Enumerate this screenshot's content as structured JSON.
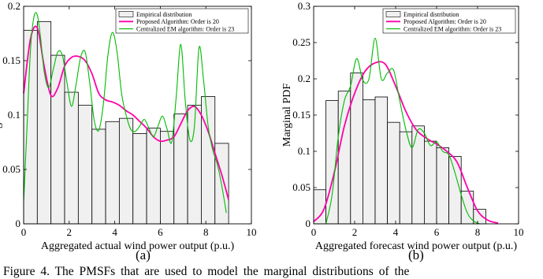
{
  "colors": {
    "empirical_fill": "#f0f0f0",
    "empirical_stroke": "#000000",
    "proposed": "#ff00aa",
    "centralized": "#00bb00"
  },
  "caption": "Figure 4. The PMSFs that are used to model the marginal distributions of the",
  "chart_data": [
    {
      "type": "bar",
      "panel_label": "(a)",
      "xlabel": "Aggregated actual wind power output (p.u.)",
      "ylabel": "Marginal PDF",
      "xlim": [
        0,
        10
      ],
      "ylim": [
        0,
        0.2
      ],
      "xticks": [
        0,
        2,
        4,
        6,
        8,
        10
      ],
      "yticks": [
        0,
        0.05,
        0.1,
        0.15,
        0.2
      ],
      "xtick_labels": [
        "0",
        "2",
        "4",
        "6",
        "8",
        "10"
      ],
      "ytick_labels": [
        "0",
        "0.05",
        "0.1",
        "0.15",
        "0.2"
      ],
      "legend_position": "top-right",
      "legend": [
        "Empirical distribution",
        "Proposed Algorithm: Order is 20",
        "Centralized EM algorithm: Order is 23"
      ],
      "bin_edges": [
        0,
        0.6,
        1.2,
        1.8,
        2.4,
        3.0,
        3.6,
        4.2,
        4.8,
        5.4,
        6.0,
        6.6,
        7.2,
        7.8,
        8.4,
        9.0
      ],
      "bar_values": [
        0.178,
        0.186,
        0.155,
        0.121,
        0.109,
        0.087,
        0.094,
        0.097,
        0.083,
        0.088,
        0.085,
        0.101,
        0.109,
        0.117,
        0.074
      ],
      "series": [
        {
          "name": "Proposed Algorithm: Order is 20",
          "x": [
            0,
            0.3,
            0.6,
            0.9,
            1.2,
            1.5,
            1.8,
            2.1,
            2.4,
            2.7,
            3.0,
            3.3,
            3.6,
            3.9,
            4.2,
            4.5,
            4.8,
            5.1,
            5.4,
            5.7,
            6.0,
            6.3,
            6.6,
            6.9,
            7.2,
            7.5,
            7.8,
            8.1,
            8.4,
            8.7,
            9.0
          ],
          "y": [
            0.12,
            0.17,
            0.18,
            0.145,
            0.118,
            0.125,
            0.145,
            0.153,
            0.154,
            0.15,
            0.138,
            0.12,
            0.114,
            0.112,
            0.109,
            0.104,
            0.1,
            0.094,
            0.088,
            0.08,
            0.076,
            0.077,
            0.08,
            0.092,
            0.104,
            0.108,
            0.1,
            0.085,
            0.065,
            0.045,
            0.022
          ]
        },
        {
          "name": "Centralized EM algorithm: Order is 23",
          "x": [
            0,
            0.15,
            0.3,
            0.45,
            0.6,
            0.75,
            0.9,
            1.1,
            1.3,
            1.5,
            1.7,
            1.9,
            2.1,
            2.3,
            2.5,
            2.7,
            2.9,
            3.1,
            3.3,
            3.5,
            3.7,
            3.9,
            4.1,
            4.3,
            4.5,
            4.7,
            4.9,
            5.1,
            5.3,
            5.5,
            5.7,
            5.9,
            6.1,
            6.3,
            6.5,
            6.7,
            6.9,
            7.1,
            7.3,
            7.5,
            7.7,
            7.9,
            8.1,
            8.3,
            8.5,
            8.7,
            8.9
          ],
          "y": [
            0.02,
            0.09,
            0.16,
            0.19,
            0.192,
            0.17,
            0.14,
            0.125,
            0.142,
            0.158,
            0.155,
            0.13,
            0.108,
            0.128,
            0.153,
            0.158,
            0.13,
            0.095,
            0.086,
            0.11,
            0.155,
            0.176,
            0.158,
            0.12,
            0.1,
            0.087,
            0.085,
            0.09,
            0.096,
            0.088,
            0.08,
            0.09,
            0.099,
            0.087,
            0.075,
            0.117,
            0.165,
            0.112,
            0.077,
            0.09,
            0.162,
            0.132,
            0.09,
            0.068,
            0.055,
            0.035,
            0.01
          ]
        }
      ]
    },
    {
      "type": "bar",
      "panel_label": "(b)",
      "xlabel": "Aggregated forecast wind power output (p.u.)",
      "ylabel": "Marginal PDF",
      "xlim": [
        0,
        10
      ],
      "ylim": [
        0,
        0.3
      ],
      "xticks": [
        0,
        2,
        4,
        6,
        8,
        10
      ],
      "yticks": [
        0,
        0.05,
        0.1,
        0.15,
        0.2,
        0.25,
        0.3
      ],
      "xtick_labels": [
        "0",
        "2",
        "4",
        "6",
        "8",
        "10"
      ],
      "ytick_labels": [
        "0",
        "0.05",
        "0.1",
        "0.15",
        "0.2",
        "0.25",
        "0.3"
      ],
      "legend_position": "top-right",
      "legend": [
        "Empirical distribution",
        "Proposed Algorithm: Order is 20",
        "Centralized EM algorithm: Order is 23"
      ],
      "bin_edges": [
        0,
        0.6,
        1.2,
        1.8,
        2.4,
        3.0,
        3.6,
        4.2,
        4.8,
        5.4,
        6.0,
        6.6,
        7.2,
        7.8,
        8.4
      ],
      "bar_values": [
        0.047,
        0.17,
        0.183,
        0.208,
        0.171,
        0.175,
        0.14,
        0.127,
        0.135,
        0.114,
        0.105,
        0.093,
        0.045,
        0.02
      ],
      "bar_start": 0.6,
      "series": [
        {
          "name": "Proposed Algorithm: Order is 20",
          "x": [
            0,
            0.5,
            1.0,
            1.5,
            2.0,
            2.5,
            3.0,
            3.5,
            4.0,
            4.5,
            5.0,
            5.5,
            6.0,
            6.5,
            7.0,
            7.5,
            8.0,
            8.5,
            9.0
          ],
          "y": [
            0.003,
            0.02,
            0.07,
            0.135,
            0.18,
            0.21,
            0.222,
            0.22,
            0.19,
            0.155,
            0.13,
            0.118,
            0.11,
            0.1,
            0.085,
            0.05,
            0.018,
            0.005,
            0.001
          ]
        },
        {
          "name": "Centralized EM algorithm: Order is 23",
          "x": [
            0.6,
            0.9,
            1.2,
            1.5,
            1.8,
            2.1,
            2.4,
            2.7,
            3.0,
            3.3,
            3.6,
            3.9,
            4.2,
            4.5,
            4.8,
            5.1,
            5.4,
            5.7,
            6.0,
            6.3,
            6.6,
            6.9,
            7.2,
            7.5,
            7.8,
            8.1
          ],
          "y": [
            0.0,
            0.04,
            0.12,
            0.17,
            0.19,
            0.228,
            0.198,
            0.2,
            0.256,
            0.2,
            0.208,
            0.212,
            0.17,
            0.13,
            0.105,
            0.13,
            0.125,
            0.108,
            0.113,
            0.1,
            0.095,
            0.07,
            0.04,
            0.015,
            0.004,
            0.0
          ]
        }
      ]
    }
  ]
}
